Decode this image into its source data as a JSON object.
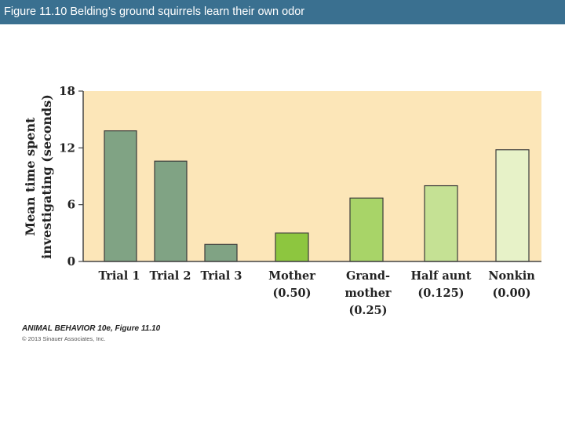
{
  "header": {
    "title": "Figure 11.10  Belding’s ground squirrels learn their own odor"
  },
  "chart_data": {
    "type": "bar",
    "title": "",
    "ylabel_lines": [
      "Mean time spent",
      "investigating (seconds)"
    ],
    "xlabel": "",
    "ylim": [
      0,
      18
    ],
    "yticks": [
      0,
      6,
      12,
      18
    ],
    "grid": false,
    "categories": [
      [
        "Trial 1"
      ],
      [
        "Trial 2"
      ],
      [
        "Trial 3"
      ],
      [
        "Mother",
        "(0.50)"
      ],
      [
        "Grand-",
        "mother",
        "(0.25)"
      ],
      [
        "Half aunt",
        "(0.125)"
      ],
      [
        "Nonkin",
        "(0.00)"
      ]
    ],
    "values": [
      13.8,
      10.6,
      1.8,
      3.0,
      6.7,
      8.0,
      11.8
    ],
    "colors": [
      "#80a384",
      "#80a384",
      "#80a384",
      "#8dc63f",
      "#a8d468",
      "#c5e194",
      "#e7f2c8"
    ],
    "plot_background": "#fce6b8"
  },
  "credit": {
    "title": "ANIMAL BEHAVIOR 10e, Figure 11.10",
    "copyright": "© 2013 Sinauer Associates, Inc."
  }
}
